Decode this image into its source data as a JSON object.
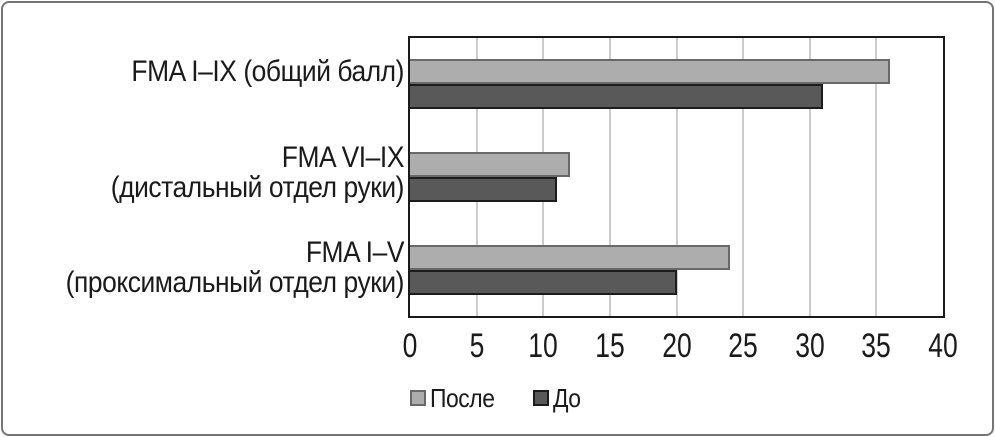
{
  "chart_data": {
    "type": "bar",
    "orientation": "horizontal",
    "categories": [
      {
        "lines": [
          "FMA I–IX (общий балл)"
        ]
      },
      {
        "lines": [
          "FMA VI–IX",
          "(дистальный отдел руки)"
        ]
      },
      {
        "lines": [
          "FMA I–V",
          "(проксимальный отдел руки)"
        ]
      }
    ],
    "series": [
      {
        "name": "После",
        "values": [
          36,
          12,
          24
        ],
        "color": "#adadad",
        "border_color": "#696969"
      },
      {
        "name": "До",
        "values": [
          31,
          11,
          20
        ],
        "color": "#595959",
        "border_color": "#1c1c1c"
      }
    ],
    "xlim": [
      0,
      40
    ],
    "xticks": [
      0,
      5,
      10,
      15,
      20,
      25,
      30,
      35,
      40
    ],
    "grid": true,
    "gridline_color": "#cccccc",
    "legend_position": "bottom"
  }
}
